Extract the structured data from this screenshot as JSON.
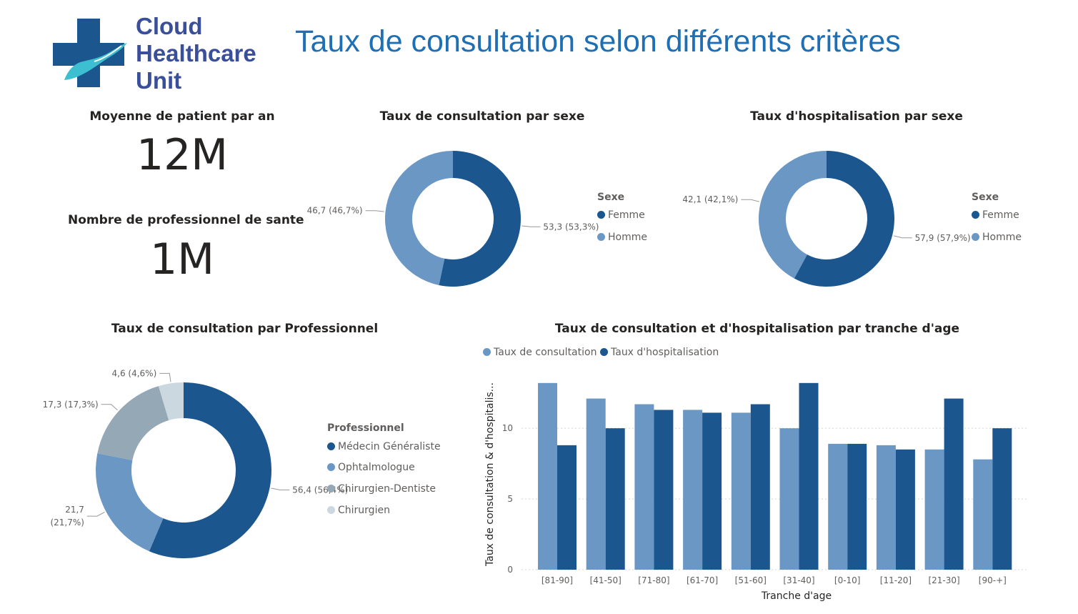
{
  "header": {
    "logo_line1": "Cloud",
    "logo_line2": "Healthcare",
    "logo_line3": "Unit",
    "title": "Taux de consultation selon différents critères"
  },
  "kpis": [
    {
      "label": "Moyenne de patient par an",
      "value": "12M"
    },
    {
      "label": "Nombre de professionnel de sante",
      "value": "1M"
    }
  ],
  "colors": {
    "dark_blue": "#1c568f",
    "light_blue": "#6b97c4",
    "gray_blue": "#94a8b5",
    "pale": "#ccd8e0",
    "title_blue": "#1f6fb5",
    "logo_blue": "#3a4f9a",
    "logo_teal": "#3cbfd0"
  },
  "chart_data": [
    {
      "type": "pie",
      "title": "Taux de consultation par sexe",
      "legend_title": "Sexe",
      "categories": [
        "Femme",
        "Homme"
      ],
      "values": [
        53.3,
        46.7
      ],
      "labels": [
        "53,3 (53,3%)",
        "46,7 (46,7%)"
      ],
      "colors": [
        "#1c568f",
        "#6b97c4"
      ],
      "legend_position": "right"
    },
    {
      "type": "pie",
      "title": "Taux d'hospitalisation par sexe",
      "legend_title": "Sexe",
      "categories": [
        "Femme",
        "Homme"
      ],
      "values": [
        57.9,
        42.1
      ],
      "labels": [
        "57,9 (57,9%)",
        "42,1 (42,1%)"
      ],
      "colors": [
        "#1c568f",
        "#6b97c4"
      ],
      "legend_position": "right"
    },
    {
      "type": "pie",
      "title": "Taux de consultation par Professionnel",
      "legend_title": "Professionnel",
      "categories": [
        "Médecin Généraliste",
        "Ophtalmologue",
        "Chirurgien-Dentiste",
        "Chirurgien"
      ],
      "values": [
        56.4,
        21.7,
        17.3,
        4.6
      ],
      "labels": [
        "56,4 (56,4%)",
        "21,7 (21,7%)",
        "17,3 (17,3%)",
        "4,6 (4,6%)"
      ],
      "label_lines": [
        [
          "56,4 (56,4%)"
        ],
        [
          "21,7",
          "(21,7%)"
        ],
        [
          "17,3 (17,3%)"
        ],
        [
          "4,6 (4,6%)"
        ]
      ],
      "colors": [
        "#1c568f",
        "#6b97c4",
        "#94a8b5",
        "#ccd8e0"
      ],
      "legend_position": "right"
    },
    {
      "type": "bar",
      "title": "Taux de consultation et d'hospitalisation par tranche d'age",
      "xlabel": "Tranche d'age",
      "ylabel": "Taux de consultation & d'hospitalis...",
      "categories": [
        "[81-90]",
        "[41-50]",
        "[71-80]",
        "[61-70]",
        "[51-60]",
        "[31-40]",
        "[0-10]",
        "[11-20]",
        "[21-30]",
        "[90-+]"
      ],
      "series": [
        {
          "name": "Taux de consultation",
          "color": "#6b97c4",
          "values": [
            13.2,
            12.1,
            11.7,
            11.3,
            11.1,
            10.0,
            8.9,
            8.8,
            8.5,
            7.8
          ]
        },
        {
          "name": "Taux d'hospitalisation",
          "color": "#1c568f",
          "values": [
            8.8,
            10.0,
            11.3,
            11.1,
            11.7,
            13.2,
            8.9,
            8.5,
            12.1,
            10.0
          ]
        }
      ],
      "yticks": [
        "0",
        "5",
        "10"
      ],
      "ylim": [
        0,
        14
      ],
      "grid": true,
      "legend_position": "top-left"
    }
  ]
}
